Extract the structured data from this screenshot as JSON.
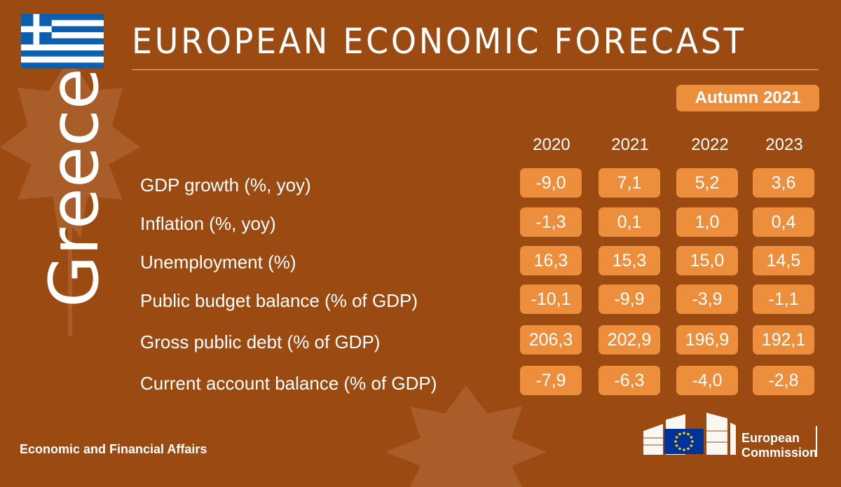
{
  "header": {
    "title": "EUROPEAN ECONOMIC FORECAST",
    "edition": "Autumn 2021"
  },
  "country": "Greece",
  "flag_icon": "greece-flag",
  "years": [
    "2020",
    "2021",
    "2022",
    "2023"
  ],
  "rows": [
    {
      "label": "GDP growth (%, yoy)",
      "values": [
        "-9,0",
        "7,1",
        "5,2",
        "3,6"
      ]
    },
    {
      "label": "Inflation (%, yoy)",
      "values": [
        "-1,3",
        "0,1",
        "1,0",
        "0,4"
      ]
    },
    {
      "label": "Unemployment (%)",
      "values": [
        "16,3",
        "15,3",
        "15,0",
        "14,5"
      ]
    },
    {
      "label": "Public budget balance (% of GDP)",
      "values": [
        "-10,1",
        "-9,9",
        "-3,9",
        "-1,1"
      ]
    },
    {
      "label": "Gross public debt (% of GDP)",
      "values": [
        "206,3",
        "202,9",
        "196,9",
        "192,1"
      ]
    },
    {
      "label": "Current account balance (% of GDP)",
      "values": [
        "-7,9",
        "-6,3",
        "-4,0",
        "-2,8"
      ]
    }
  ],
  "footer": {
    "department": "Economic and Financial Affairs",
    "logo_line1": "European",
    "logo_line2": "Commission"
  },
  "colors": {
    "background": "#9b4a12",
    "accent": "#ec8e3b",
    "flag_blue": "#0d5eaf"
  }
}
